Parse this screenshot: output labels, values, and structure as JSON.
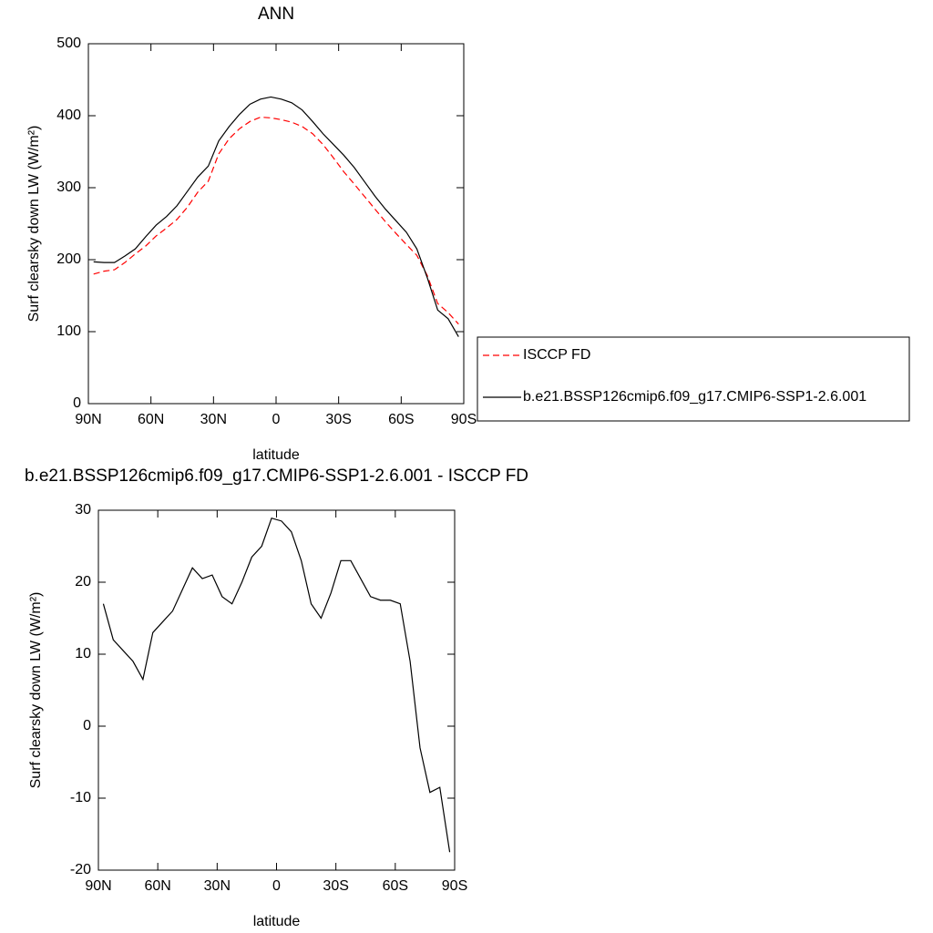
{
  "chart_data": [
    {
      "type": "line",
      "title": "ANN",
      "xlabel": "latitude",
      "ylabel": "Surf clearsky down LW (W/m²)",
      "x": [
        87.5,
        82.5,
        77.5,
        72.5,
        67.5,
        62.5,
        57.5,
        52.5,
        47.5,
        42.5,
        37.5,
        32.5,
        27.5,
        22.5,
        17.5,
        12.5,
        7.5,
        2.5,
        -2.5,
        -7.5,
        -12.5,
        -17.5,
        -22.5,
        -27.5,
        -32.5,
        -37.5,
        -42.5,
        -47.5,
        -52.5,
        -57.5,
        -62.5,
        -67.5,
        -72.5,
        -77.5,
        -82.5,
        -87.5
      ],
      "series": [
        {
          "name": "ISCCP FD",
          "color": "#ff0000",
          "style": "dashed",
          "values": [
            180,
            184,
            186,
            196,
            208,
            219,
            233,
            244,
            256,
            273,
            294,
            309,
            347,
            368,
            382,
            392,
            398,
            397,
            394.5,
            391,
            385,
            375,
            360,
            341.5,
            322,
            305,
            287.5,
            270,
            252.5,
            236.5,
            221,
            206,
            178,
            139,
            126.5,
            110.5
          ]
        },
        {
          "name": "b.e21.BSSP126cmip6.f09_g17.CMIP6-SSP1-2.6.001",
          "color": "#000000",
          "style": "solid",
          "values": [
            197,
            196,
            196,
            205,
            215,
            232,
            248,
            260,
            275,
            295,
            315,
            330,
            365,
            385,
            402,
            416,
            423,
            426,
            423,
            418,
            408,
            392,
            375,
            360,
            345,
            328,
            308,
            288,
            270,
            254,
            238,
            215,
            175,
            130,
            118,
            93
          ]
        }
      ],
      "xlim": [
        90,
        -90
      ],
      "xticks": [
        {
          "value": 90,
          "label": "90N"
        },
        {
          "value": 60,
          "label": "60N"
        },
        {
          "value": 30,
          "label": "30N"
        },
        0,
        {
          "value": -30,
          "label": "30S"
        },
        {
          "value": -60,
          "label": "60S"
        },
        {
          "value": -90,
          "label": "90S"
        }
      ],
      "ylim": [
        0,
        500
      ],
      "yticks": [
        0,
        100,
        200,
        300,
        400,
        500
      ],
      "legend": "right"
    },
    {
      "type": "line",
      "title": "b.e21.BSSP126cmip6.f09_g17.CMIP6-SSP1-2.6.001 - ISCCP FD",
      "xlabel": "latitude",
      "ylabel": "Surf clearsky down LW (W/m²)",
      "x": [
        87.5,
        82.5,
        77.5,
        72.5,
        67.5,
        62.5,
        57.5,
        52.5,
        47.5,
        42.5,
        37.5,
        32.5,
        27.5,
        22.5,
        17.5,
        12.5,
        7.5,
        2.5,
        -2.5,
        -7.5,
        -12.5,
        -17.5,
        -22.5,
        -27.5,
        -32.5,
        -37.5,
        -42.5,
        -47.5,
        -52.5,
        -57.5,
        -62.5,
        -67.5,
        -72.5,
        -77.5,
        -82.5,
        -87.5
      ],
      "series": [
        {
          "color": "#000000",
          "style": "solid",
          "values": [
            17,
            12,
            10.5,
            9,
            6.5,
            13,
            14.5,
            16,
            19,
            22,
            20.5,
            21,
            18,
            17,
            20,
            23.5,
            25,
            28.9,
            28.5,
            27,
            23,
            17,
            15,
            18.5,
            23,
            23,
            20.5,
            18,
            17.5,
            17.5,
            17,
            9,
            -3,
            -9.2,
            -8.5,
            -17.5
          ]
        }
      ],
      "xlim": [
        90,
        -90
      ],
      "xticks": [
        {
          "value": 90,
          "label": "90N"
        },
        {
          "value": 60,
          "label": "60N"
        },
        {
          "value": 30,
          "label": "30N"
        },
        0,
        {
          "value": -30,
          "label": "30S"
        },
        {
          "value": -60,
          "label": "60S"
        },
        {
          "value": -90,
          "label": "90S"
        }
      ],
      "ylim": [
        -20,
        30
      ],
      "yticks": [
        -20,
        -10,
        0,
        10,
        20,
        30
      ]
    }
  ]
}
